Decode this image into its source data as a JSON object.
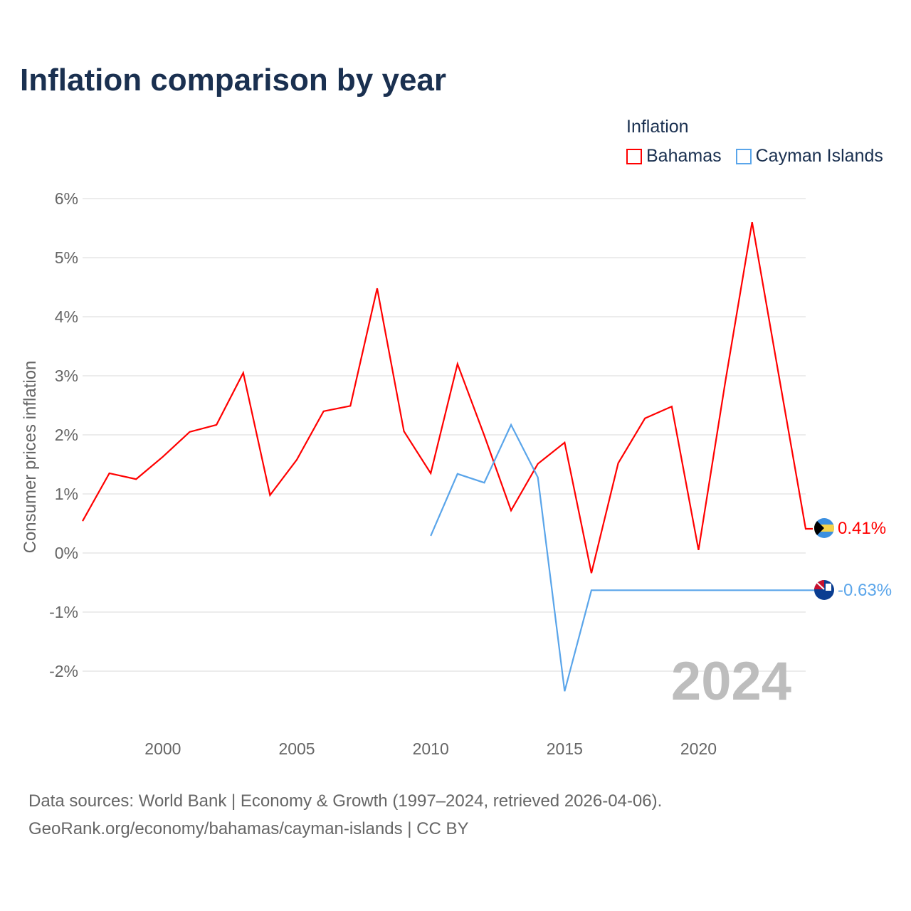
{
  "chart_data": {
    "type": "line",
    "title": "Inflation comparison by year",
    "ylabel": "Consumer prices inflation",
    "xlabel": "",
    "xlim": [
      1997,
      2024
    ],
    "ylim": [
      -2.9,
      6
    ],
    "x_ticks": [
      2000,
      2005,
      2010,
      2015,
      2020
    ],
    "y_ticks": [
      -2,
      -1,
      0,
      1,
      2,
      3,
      4,
      5,
      6
    ],
    "y_tick_labels": [
      "-2%",
      "-1%",
      "0%",
      "1%",
      "2%",
      "3%",
      "4%",
      "5%",
      "6%"
    ],
    "grid": true,
    "legend_title": "Inflation",
    "legend_position": "top-right",
    "year_label": "2024",
    "series": [
      {
        "name": "Bahamas",
        "color": "#ff0000",
        "end_label": "0.41%",
        "x": [
          1997,
          1998,
          1999,
          2000,
          2001,
          2002,
          2003,
          2004,
          2005,
          2006,
          2007,
          2008,
          2009,
          2010,
          2011,
          2012,
          2013,
          2014,
          2015,
          2016,
          2017,
          2018,
          2019,
          2020,
          2021,
          2022,
          2023,
          2024
        ],
        "values": [
          0.54,
          1.35,
          1.25,
          1.63,
          2.05,
          2.17,
          3.05,
          0.98,
          1.58,
          2.4,
          2.49,
          4.48,
          2.06,
          1.35,
          3.2,
          1.99,
          0.72,
          1.51,
          1.87,
          -0.34,
          1.52,
          2.28,
          2.48,
          0.05,
          2.9,
          5.6,
          3.0,
          0.41
        ]
      },
      {
        "name": "Cayman Islands",
        "color": "#5aa5ea",
        "end_label": "-0.63%",
        "x": [
          2010,
          2011,
          2012,
          2013,
          2014,
          2015,
          2016,
          2017,
          2018,
          2019,
          2020,
          2021,
          2022,
          2023,
          2024
        ],
        "values": [
          0.29,
          1.34,
          1.19,
          2.17,
          1.28,
          -2.34,
          -0.63,
          -0.63,
          -0.63,
          -0.63,
          -0.63,
          -0.63,
          -0.63,
          -0.63,
          -0.63
        ]
      }
    ]
  },
  "source": {
    "line1": "Data sources: World Bank | Economy & Growth (1997–2024, retrieved 2026-04-06).",
    "line2": "GeoRank.org/economy/bahamas/cayman-islands | CC BY"
  }
}
